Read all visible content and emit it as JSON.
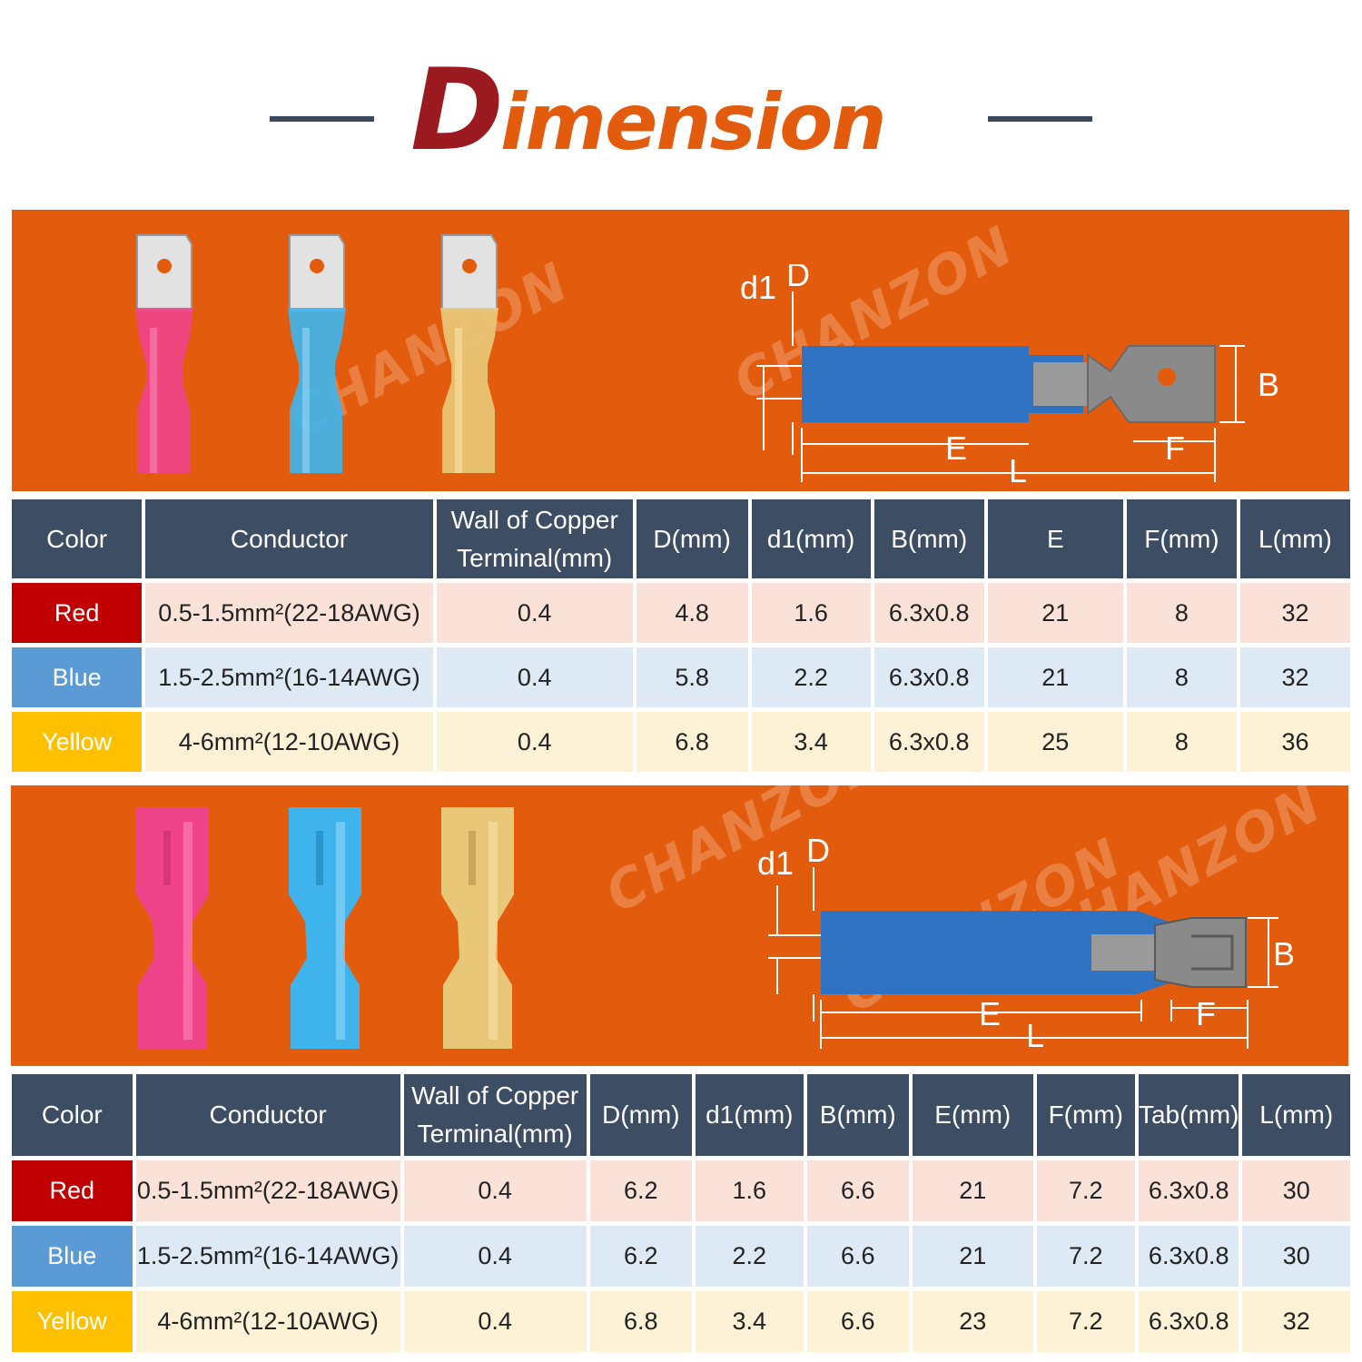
{
  "title": {
    "first_letter": "D",
    "rest": "imension"
  },
  "colors": {
    "orange": "#e35b0c",
    "dark_red": "#9b1a1f",
    "header_navy": "#3d4d63",
    "red": "#c00000",
    "blue": "#5b9bd5",
    "yellow": "#ffc000"
  },
  "watermark": "CHANZON",
  "diagram_labels": {
    "d1": "d1",
    "D": "D",
    "B": "B",
    "E": "E",
    "F": "F",
    "L": "L"
  },
  "table_male": {
    "headers": [
      "Color",
      "Conductor",
      "Wall of Copper",
      "Terminal(mm)",
      "D(mm)",
      "d1(mm)",
      "B(mm)",
      "E",
      "F(mm)",
      "L(mm)"
    ],
    "rows": [
      [
        "Red",
        "0.5-1.5mm²(22-18AWG)",
        "0.4",
        "4.8",
        "1.6",
        "6.3x0.8",
        "21",
        "8",
        "32"
      ],
      [
        "Blue",
        "1.5-2.5mm²(16-14AWG)",
        "0.4",
        "5.8",
        "2.2",
        "6.3x0.8",
        "21",
        "8",
        "32"
      ],
      [
        "Yellow",
        "4-6mm²(12-10AWG)",
        "0.4",
        "6.8",
        "3.4",
        "6.3x0.8",
        "25",
        "8",
        "36"
      ]
    ]
  },
  "table_female": {
    "headers": [
      "Color",
      "Conductor",
      "Wall of Copper",
      "Terminal(mm)",
      "D(mm)",
      "d1(mm)",
      "B(mm)",
      "E(mm)",
      "F(mm)",
      "Tab(mm)",
      "L(mm)"
    ],
    "rows": [
      [
        "Red",
        "0.5-1.5mm²(22-18AWG)",
        "0.4",
        "6.2",
        "1.6",
        "6.6",
        "21",
        "7.2",
        "6.3x0.8",
        "30"
      ],
      [
        "Blue",
        "1.5-2.5mm²(16-14AWG)",
        "0.4",
        "6.2",
        "2.2",
        "6.6",
        "21",
        "7.2",
        "6.3x0.8",
        "30"
      ],
      [
        "Yellow",
        "4-6mm²(12-10AWG)",
        "0.4",
        "6.8",
        "3.4",
        "6.6",
        "23",
        "7.2",
        "6.3x0.8",
        "32"
      ]
    ]
  }
}
